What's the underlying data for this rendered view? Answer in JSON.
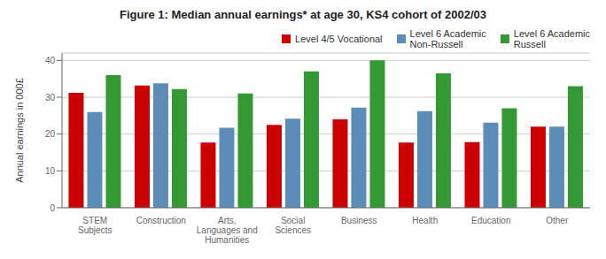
{
  "chart_data": {
    "type": "bar",
    "title": "Figure 1: Median annual earnings* at age 30, KS4 cohort of 2002/03",
    "ylabel": "Annual earnings in 000£",
    "categories": [
      "STEM\nSubjects",
      "Construction",
      "Arts,\nLanguages and\nHumanities",
      "Social\nSciences",
      "Business",
      "Health",
      "Education",
      "Other"
    ],
    "series": [
      {
        "name": "Level 4/5 Vocational",
        "color": "#CC0000",
        "values": [
          31.2,
          33.2,
          17.7,
          22.5,
          24.0,
          17.7,
          17.8,
          22.0
        ]
      },
      {
        "name": "Level 6 Academic\nNon-Russell",
        "color": "#5B8DB8",
        "values": [
          26.0,
          33.8,
          21.7,
          24.2,
          27.2,
          26.2,
          23.1,
          22.0
        ]
      },
      {
        "name": "Level 6 Academic\nRussell",
        "color": "#339933",
        "values": [
          36.0,
          32.2,
          31.0,
          37.0,
          40.0,
          36.5,
          27.0,
          33.0
        ]
      }
    ],
    "ylim": [
      0,
      42
    ],
    "yticks": [
      0,
      10,
      20,
      30,
      40
    ],
    "grid": true,
    "legend": "upper right"
  }
}
